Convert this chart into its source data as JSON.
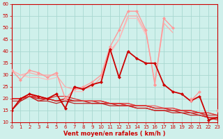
{
  "xlabel": "Vent moyen/en rafales ( km/h )",
  "xlim": [
    0,
    23
  ],
  "ylim": [
    10,
    60
  ],
  "yticks": [
    10,
    15,
    20,
    25,
    30,
    35,
    40,
    45,
    50,
    55,
    60
  ],
  "xticks": [
    0,
    1,
    2,
    3,
    4,
    5,
    6,
    7,
    8,
    9,
    10,
    11,
    12,
    13,
    14,
    15,
    16,
    17,
    18,
    19,
    20,
    21,
    22,
    23
  ],
  "bg_color": "#cff0eb",
  "grid_color": "#a8d8d0",
  "series": [
    {
      "y": [
        32,
        28,
        32,
        31,
        29,
        31,
        20,
        24,
        25,
        27,
        30,
        42,
        49,
        57,
        57,
        49,
        26,
        54,
        50,
        null,
        20,
        null,
        null,
        null
      ],
      "color": "#ff9999",
      "lw": 1.0,
      "marker": "D",
      "ms": 2.5
    },
    {
      "y": [
        15,
        20,
        22,
        21,
        20,
        22,
        16,
        25,
        24,
        26,
        27,
        41,
        29,
        40,
        37,
        35,
        35,
        26,
        23,
        22,
        19,
        21,
        11,
        12
      ],
      "color": "#cc0000",
      "lw": 1.3,
      "marker": "D",
      "ms": 2.5
    },
    {
      "y": [
        32,
        30,
        31,
        30,
        30,
        30,
        25,
        24,
        24,
        25,
        29,
        40,
        45,
        55,
        55,
        48,
        27,
        52,
        48,
        null,
        null,
        null,
        null,
        null
      ],
      "color": "#ffaaaa",
      "lw": 0.9,
      "marker": null,
      "ms": 0
    },
    {
      "y": [
        20,
        20,
        22,
        20,
        20,
        19,
        20,
        19,
        19,
        19,
        19,
        18,
        18,
        18,
        17,
        17,
        17,
        16,
        16,
        15,
        15,
        14,
        14,
        13
      ],
      "color": "#ee6666",
      "lw": 0.9,
      "marker": null,
      "ms": 0
    },
    {
      "y": [
        20,
        20,
        21,
        20,
        20,
        19,
        20,
        19,
        19,
        19,
        19,
        18,
        18,
        18,
        17,
        17,
        16,
        16,
        16,
        15,
        15,
        14,
        14,
        13
      ],
      "color": "#dd4444",
      "lw": 0.9,
      "marker": null,
      "ms": 0
    },
    {
      "y": [
        19,
        19,
        21,
        20,
        20,
        19,
        19,
        19,
        19,
        19,
        18,
        18,
        18,
        17,
        17,
        17,
        16,
        16,
        15,
        15,
        14,
        14,
        13,
        13
      ],
      "color": "#cc3333",
      "lw": 0.9,
      "marker": null,
      "ms": 0
    },
    {
      "y": [
        15,
        19,
        21,
        19,
        19,
        18,
        19,
        18,
        18,
        18,
        18,
        17,
        17,
        17,
        16,
        16,
        15,
        15,
        15,
        14,
        13,
        13,
        12,
        12
      ],
      "color": "#bb2222",
      "lw": 0.9,
      "marker": null,
      "ms": 0
    },
    {
      "y": [
        20,
        20,
        21,
        19,
        20,
        19,
        20,
        19,
        19,
        18,
        18,
        18,
        17,
        17,
        16,
        16,
        15,
        15,
        14,
        14,
        14,
        13,
        12,
        11
      ],
      "color": "#cc2222",
      "lw": 0.9,
      "marker": null,
      "ms": 0
    },
    {
      "y": [
        20,
        20,
        21,
        21,
        20,
        21,
        21,
        20,
        19,
        19,
        19,
        18,
        18,
        17,
        17,
        17,
        16,
        16,
        15,
        15,
        15,
        14,
        12,
        12
      ],
      "color": "#dd3333",
      "lw": 0.9,
      "marker": null,
      "ms": 0
    },
    {
      "y": [
        null,
        null,
        null,
        null,
        null,
        null,
        null,
        null,
        null,
        null,
        null,
        null,
        null,
        null,
        null,
        null,
        26,
        null,
        null,
        null,
        19,
        23,
        null,
        15
      ],
      "color": "#ff9999",
      "lw": 1.0,
      "marker": "D",
      "ms": 2.5
    },
    {
      "y": [
        32,
        30,
        29,
        29,
        28,
        29,
        null,
        23,
        23,
        null,
        28,
        39,
        45,
        54,
        54,
        47,
        null,
        null,
        null,
        null,
        null,
        null,
        null,
        null
      ],
      "color": "#ffbbbb",
      "lw": 0.8,
      "marker": null,
      "ms": 0
    }
  ]
}
